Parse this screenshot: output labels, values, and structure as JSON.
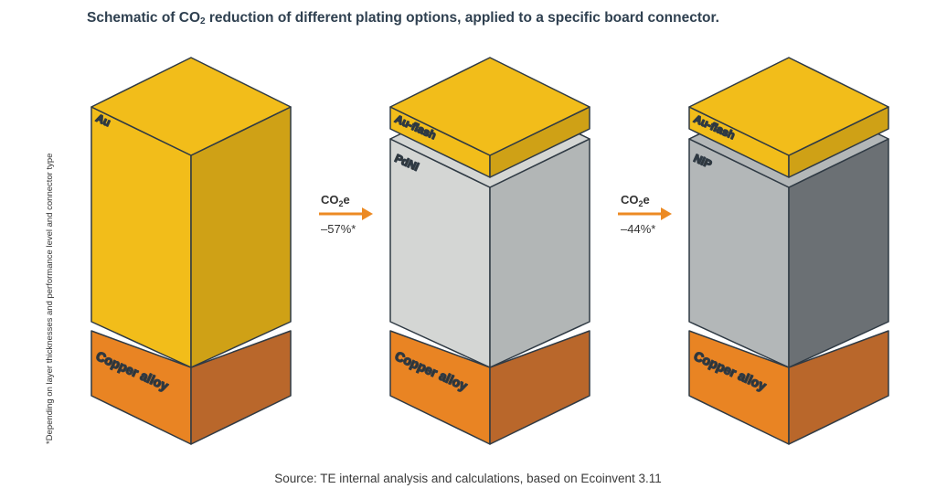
{
  "title": {
    "pre": "Schematic of CO",
    "sub": "2",
    "post": " reduction of different plating options, applied to a specific board connector."
  },
  "side_note": "*Depending on layer thicknesses and performance level and connector type",
  "source": "Source: TE internal analysis and calculations, based on Ecoinvent 3.11",
  "columns": [
    {
      "top_label": "Au",
      "base_label": "Copper alloy"
    },
    {
      "top_label": "Au-flash",
      "mid_label": "PdNi",
      "base_label": "Copper alloy"
    },
    {
      "top_label": "Au-flash",
      "mid_label": "NiP",
      "base_label": "Copper alloy"
    }
  ],
  "arrows": [
    {
      "co2_pre": "CO",
      "co2_sub": "2",
      "co2_post": "e",
      "value": "–57%*"
    },
    {
      "co2_pre": "CO",
      "co2_sub": "2",
      "co2_post": "e",
      "value": "–44%*"
    }
  ],
  "colors": {
    "gold_left": "#f2bd1a",
    "gold_right": "#cfa116",
    "gold_top": "#f2bd1a",
    "copper_left": "#e98423",
    "copper_right": "#b9672b",
    "pdni_left": "#d4d6d4",
    "pdni_right": "#b2b6b6",
    "nip_left": "#b3b7b8",
    "nip_right": "#6b7074",
    "arrow": "#ec8a23",
    "edge": "#2f3a44"
  }
}
